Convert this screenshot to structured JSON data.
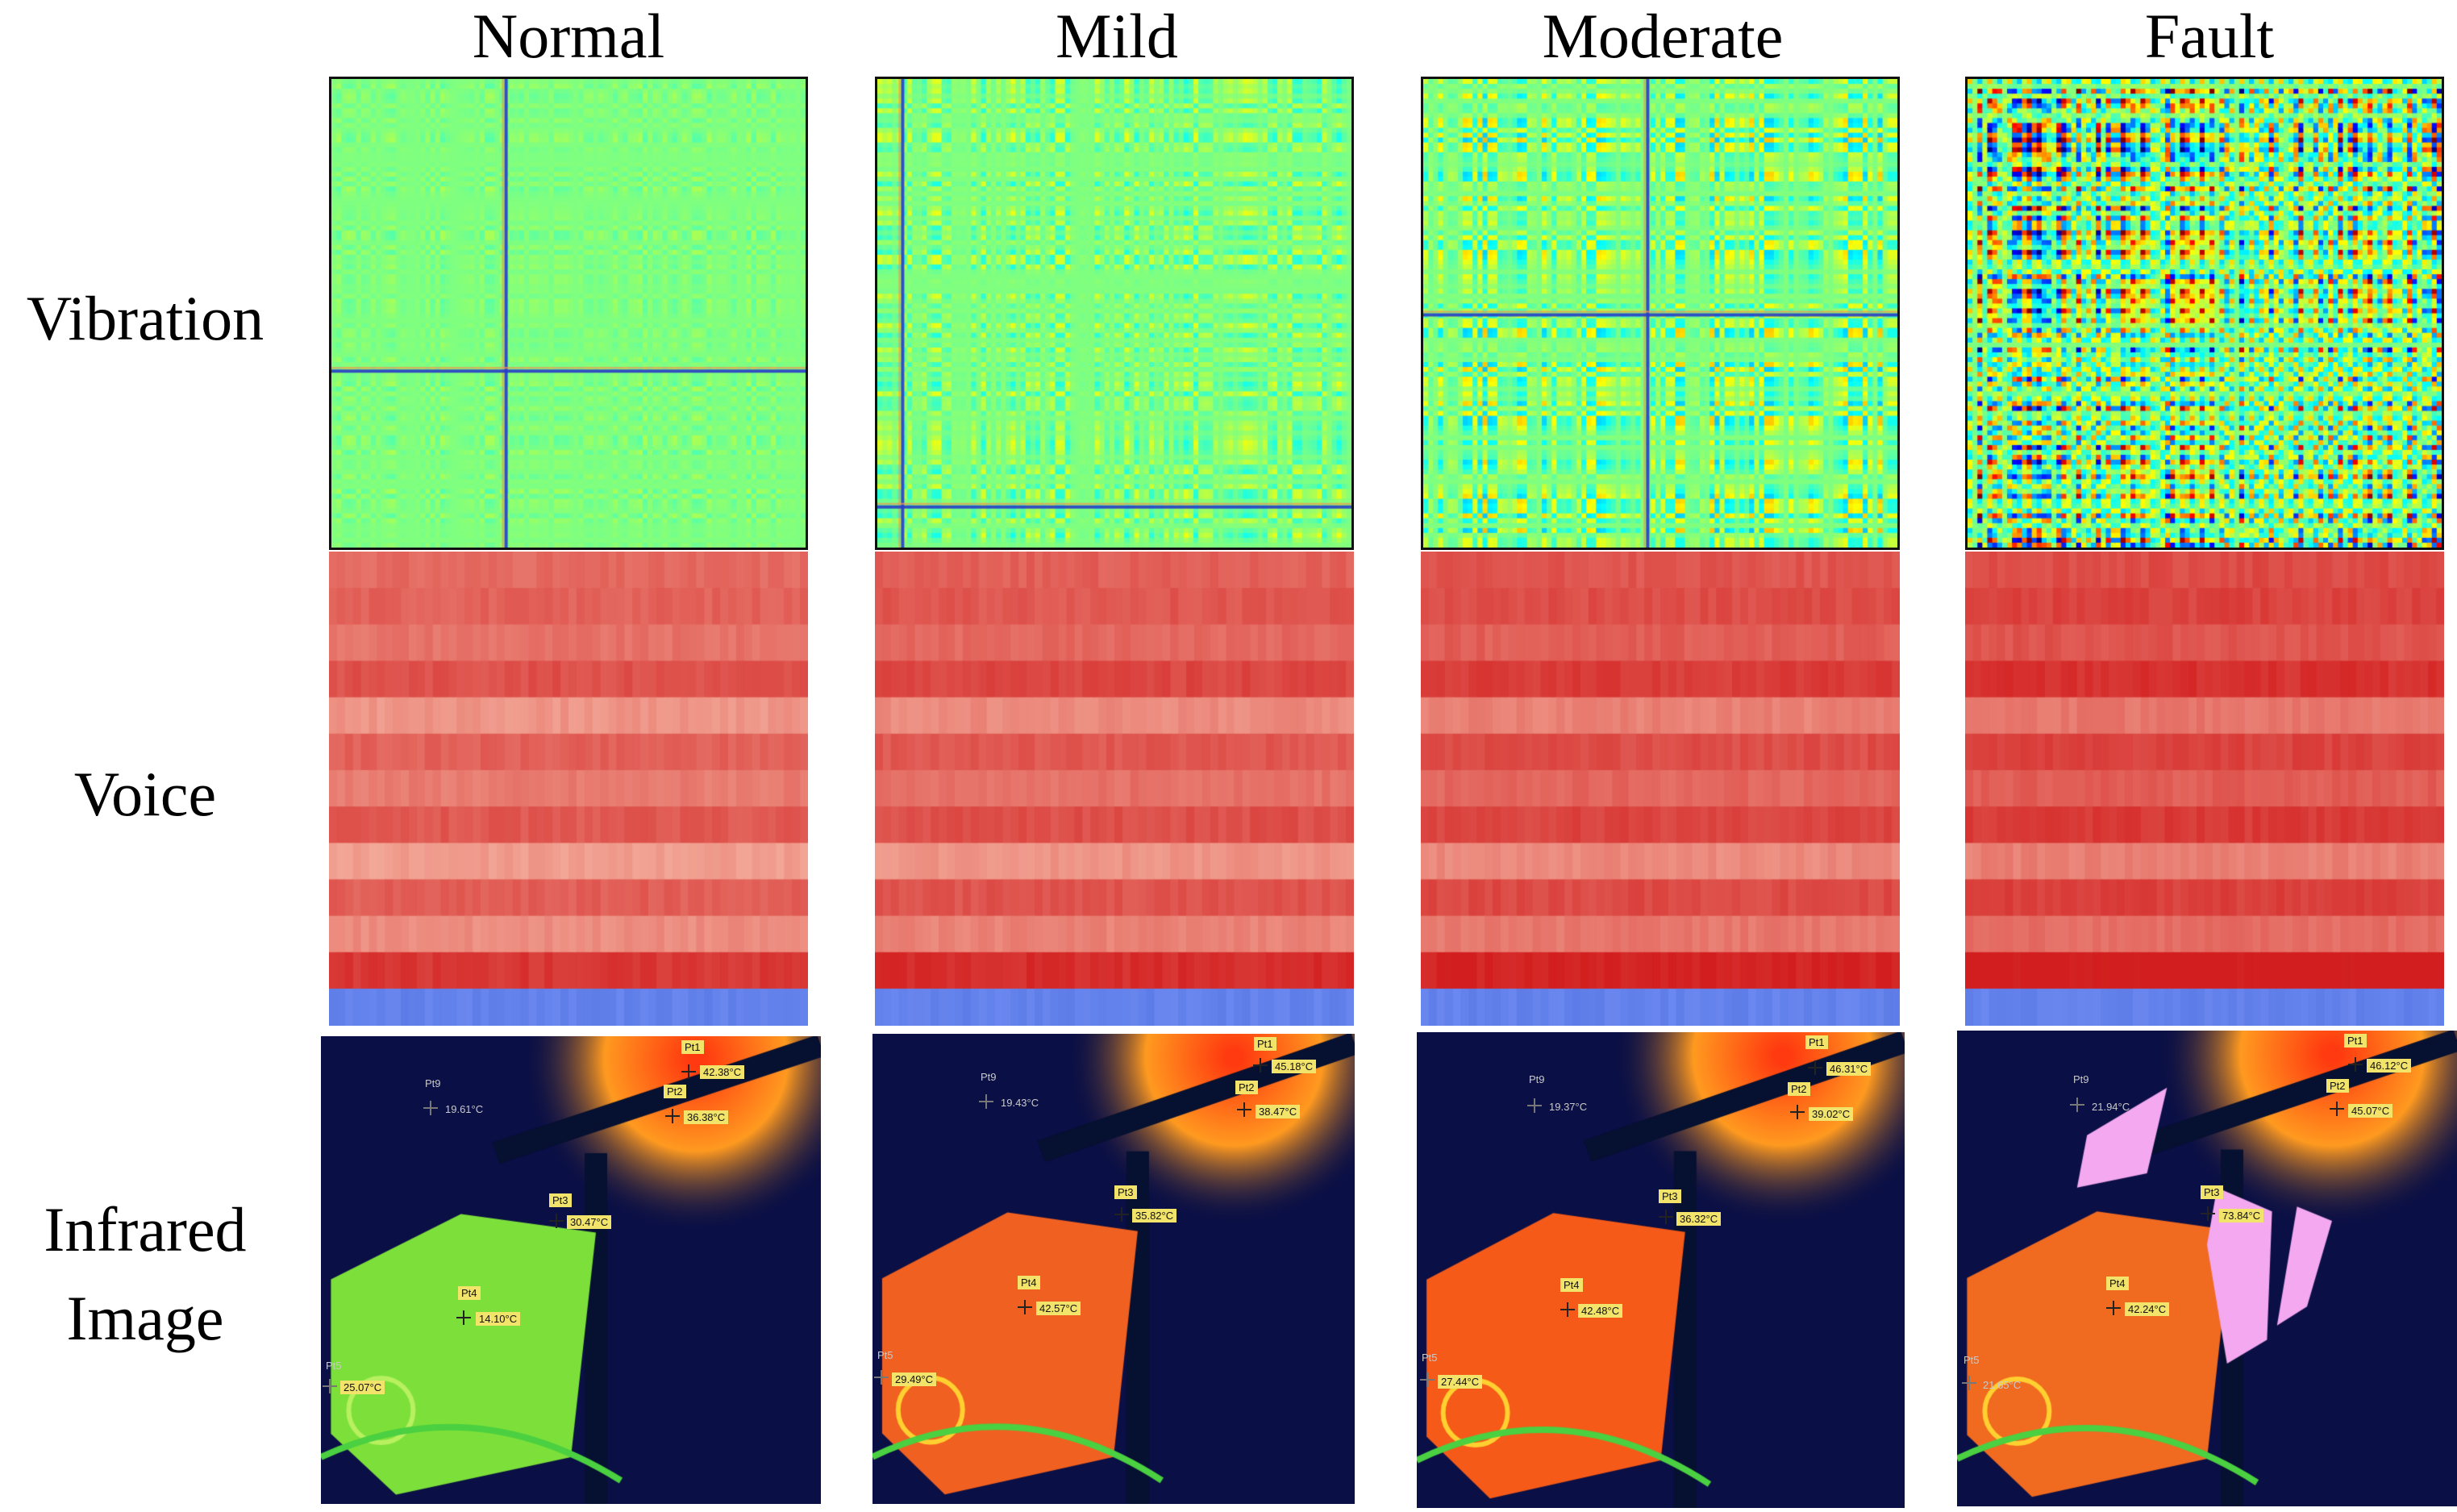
{
  "columns": [
    "Normal",
    "Mild",
    "Moderate",
    "Fault"
  ],
  "rows": {
    "vibration": "Vibration",
    "voice": "Voice",
    "infrared_line1": "Infrared",
    "infrared_line2": "Image"
  },
  "infrared": [
    {
      "pt1": "Pt1",
      "pt1_val": "42.38°C",
      "pt2": "Pt2",
      "pt2_val": "36.38°C",
      "pt3": "Pt3",
      "pt3_val": "30.47°C",
      "pt4": "Pt4",
      "pt4_val": "14.10°C",
      "pt5": "Pt5",
      "pt5_val": "25.07°C",
      "pt9": "Pt9",
      "pt9_val": "19.61°C"
    },
    {
      "pt1": "Pt1",
      "pt1_val": "45.18°C",
      "pt2": "Pt2",
      "pt2_val": "38.47°C",
      "pt3": "Pt3",
      "pt3_val": "35.82°C",
      "pt4": "Pt4",
      "pt4_val": "42.57°C",
      "pt5": "Pt5",
      "pt5_val": "29.49°C",
      "pt9": "Pt9",
      "pt9_val": "19.43°C"
    },
    {
      "pt1": "Pt1",
      "pt1_val": "46.31°C",
      "pt2": "Pt2",
      "pt2_val": "39.02°C",
      "pt3": "Pt3",
      "pt3_val": "36.32°C",
      "pt4": "Pt4",
      "pt4_val": "42.48°C",
      "pt5": "Pt5",
      "pt5_val": "27.44°C",
      "pt9": "Pt9",
      "pt9_val": "19.37°C"
    },
    {
      "pt1": "Pt1",
      "pt1_val": "46.12°C",
      "pt2": "Pt2",
      "pt2_val": "45.07°C",
      "pt3": "Pt3",
      "pt3_val": "73.84°C",
      "pt4": "Pt4",
      "pt4_val": "42.24°C",
      "pt5": "Pt5",
      "pt5_val": "21.65°C",
      "pt9": "Pt9",
      "pt9_val": "21.94°C"
    }
  ],
  "colors": {
    "vib_base": "#7fe08a",
    "voice_base": "#e8775a",
    "voice_blue": "#5b7de8",
    "ir_cold": "#0a0f45",
    "ir_warm": "#ff6a1a",
    "ir_hot": "#f0a0f0"
  }
}
